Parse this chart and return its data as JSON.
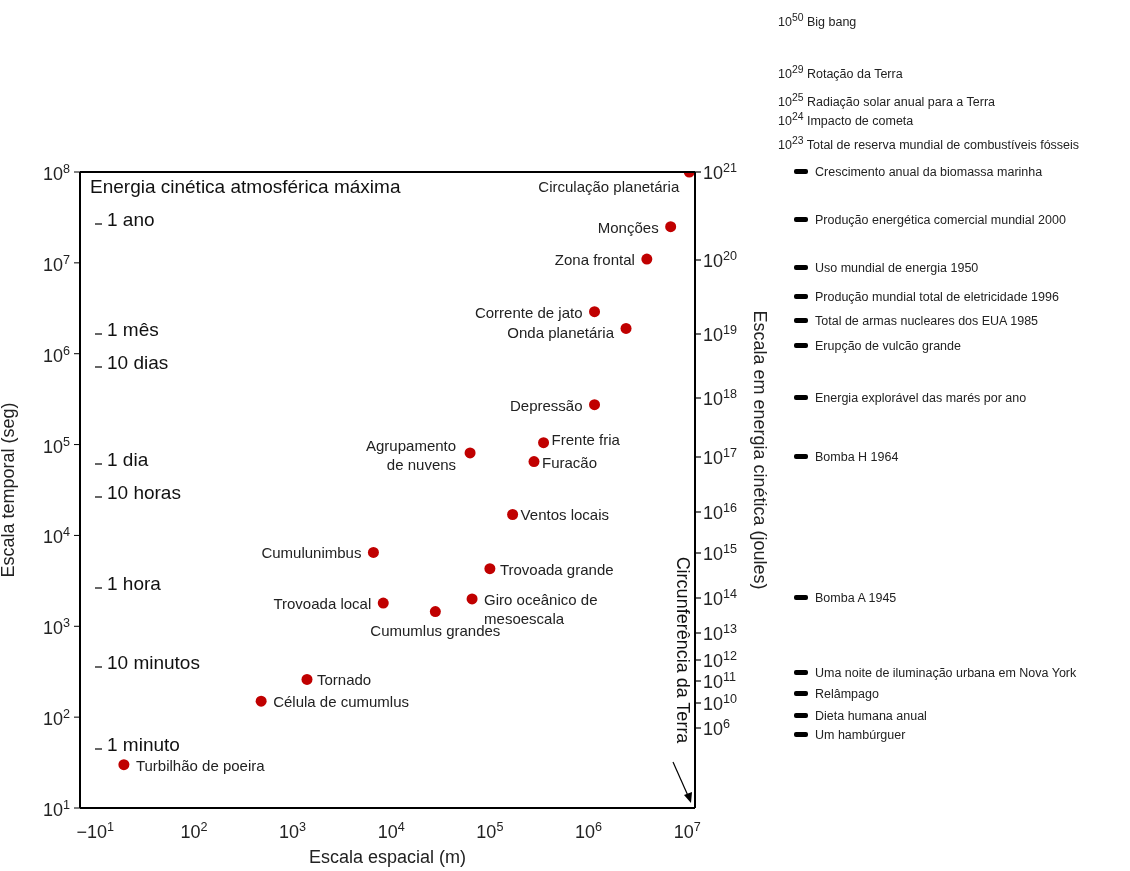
{
  "chart_data": {
    "type": "scatter",
    "xlabel": "Escala espacial (m)",
    "ylabel": "Escala temporal (seg)",
    "y2label": "Escala em energia cinética (joules)",
    "log": "xy",
    "marker": "circle",
    "xlim": [
      7,
      12000000
    ],
    "ylim": [
      10,
      100000000
    ],
    "xticks": [
      {
        "value": 10,
        "label": "−10$^{1}$"
      },
      {
        "value": 100,
        "label": "10$^{2}$"
      },
      {
        "value": 1000,
        "label": "10$^{3}$"
      },
      {
        "value": 10000,
        "label": "10$^{4}$"
      },
      {
        "value": 100000,
        "label": "10$^{5}$"
      },
      {
        "value": 1000000,
        "label": "10$^{6}$"
      },
      {
        "value": 10000000,
        "label": "10$^{7}$"
      }
    ],
    "yticks": [
      {
        "value": 10,
        "label": "10$^{1}$"
      },
      {
        "value": 100,
        "label": "10$^{2}$"
      },
      {
        "value": 1000,
        "label": "10$^{3}$"
      },
      {
        "value": 10000,
        "label": "10$^{4}$"
      },
      {
        "value": 100000,
        "label": "10$^{5}$"
      },
      {
        "value": 1000000,
        "label": "10$^{6}$"
      },
      {
        "value": 10000000,
        "label": "10$^{7}$"
      },
      {
        "value": 100000000,
        "label": "10$^{8}$"
      }
    ],
    "series": [
      {
        "name": "Circulação planetária",
        "color": "#c00000",
        "x": [
          10500000
        ],
        "values": [
          100000000
        ]
      },
      {
        "name": "Monções",
        "color": "#c00000",
        "x": [
          6800000
        ],
        "values": [
          25000000
        ]
      },
      {
        "name": "Zona frontal",
        "color": "#c00000",
        "x": [
          3900000
        ],
        "values": [
          11000000
        ]
      },
      {
        "name": "Corrente de jato",
        "color": "#c00000",
        "x": [
          1150000
        ],
        "values": [
          2900000
        ]
      },
      {
        "name": "Onda planetária",
        "color": "#c00000",
        "x": [
          2400000
        ],
        "values": [
          1900000
        ]
      },
      {
        "name": "Depressão",
        "color": "#c00000",
        "x": [
          1150000
        ],
        "values": [
          275000
        ]
      },
      {
        "name": "Frente fria",
        "color": "#c00000",
        "x": [
          350000
        ],
        "values": [
          105000
        ]
      },
      {
        "name": "Furacão",
        "color": "#c00000",
        "x": [
          280000
        ],
        "values": [
          65000
        ]
      },
      {
        "name": "Agrupamento de nuvens",
        "color": "#c00000",
        "x": [
          63000
        ],
        "values": [
          81000
        ]
      },
      {
        "name": "Ventos locais",
        "color": "#c00000",
        "x": [
          170000
        ],
        "values": [
          17000
        ]
      },
      {
        "name": "Cumulunimbus",
        "color": "#c00000",
        "x": [
          6600
        ],
        "values": [
          6500
        ]
      },
      {
        "name": "Trovoada grande",
        "color": "#c00000",
        "x": [
          100000
        ],
        "values": [
          4300
        ]
      },
      {
        "name": "Giro oceânico de mesoescala",
        "color": "#c00000",
        "x": [
          66000
        ],
        "values": [
          2000
        ]
      },
      {
        "name": "Trovoada local",
        "color": "#c00000",
        "x": [
          8300
        ],
        "values": [
          1800
        ]
      },
      {
        "name": "Cumumlus grandes",
        "color": "#c00000",
        "x": [
          28000
        ],
        "values": [
          1450
        ]
      },
      {
        "name": "Tornado",
        "color": "#c00000",
        "x": [
          1400
        ],
        "values": [
          260
        ]
      },
      {
        "name": "Célula de cumumlus",
        "color": "#c00000",
        "x": [
          480
        ],
        "values": [
          150
        ]
      },
      {
        "name": "Turbilhão de poeira",
        "color": "#c00000",
        "x": [
          19.5
        ],
        "values": [
          30
        ]
      }
    ],
    "annotations": [
      "Energia cinética atmosférica máxima",
      "Circunferência da Terra",
      "1 ano",
      "1 mês",
      "10 dias",
      "1 dia",
      "10 horas",
      "1 hora",
      "10 minutos",
      "1 minuto",
      "10$^{21}$",
      "10$^{20}$",
      "10$^{19}$",
      "10$^{18}$",
      "10$^{17}$",
      "10$^{16}$",
      "10$^{15}$",
      "10$^{14}$",
      "10$^{13}$",
      "10$^{12}$",
      "10$^{11}$",
      "10$^{10}$",
      "10$^{6}$",
      "10$^{50}$ Big bang",
      "10$^{29}$ Rotação da Terra",
      "10$^{25}$ Radiação solar anual para a Terra",
      "10$^{24}$ Impacto de cometa",
      "10$^{23}$ Total de reserva mundial de combustíveis fósseis",
      "Crescimento anual da biomassa marinha",
      "Produção energética comercial mundial 2000",
      "Uso mundial de energia 1950",
      "Produção mundial total de eletricidade 1996",
      "Total de armas nucleares dos EUA 1985",
      "Erupção de vulcão grande",
      "Energia explorável das marés por ano",
      "Bomba H 1964",
      "Bomba A 1945",
      "Uma noite de iluminação urbana em Nova York",
      "Relâmpago",
      "Dieta humana anual",
      "Um hambúrguer"
    ]
  }
}
